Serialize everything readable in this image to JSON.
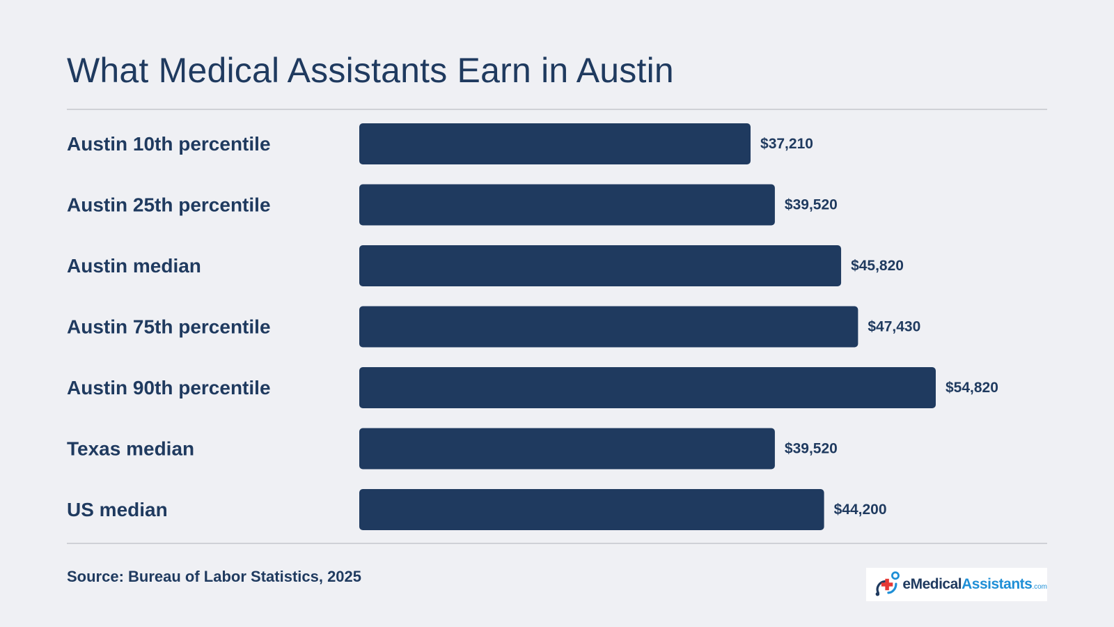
{
  "title": "What Medical Assistants Earn in Austin",
  "source": "Source: Bureau of Labor Statistics, 2025",
  "logo": {
    "part1": "eMedical",
    "part2": "Assistants",
    "suffix": ".com"
  },
  "colors": {
    "bar": "#1f3a5f",
    "background": "#eff0f4",
    "text": "#1f3a5f",
    "rule": "#cfd1d6",
    "logo_accent": "#1f8fd6",
    "logo_cross": "#e53935"
  },
  "chart_data": {
    "type": "bar",
    "orientation": "horizontal",
    "categories": [
      "Austin 10th percentile",
      "Austin 25th percentile",
      "Austin median",
      "Austin 75th percentile",
      "Austin 90th percentile",
      "Texas median",
      "US median"
    ],
    "values": [
      37210,
      39520,
      45820,
      47430,
      54820,
      39520,
      44200
    ],
    "value_labels": [
      "$37,210",
      "$39,520",
      "$45,820",
      "$47,430",
      "$54,820",
      "$39,520",
      "$44,200"
    ],
    "xlim": [
      0,
      54820
    ],
    "grid": false,
    "legend": "none"
  }
}
